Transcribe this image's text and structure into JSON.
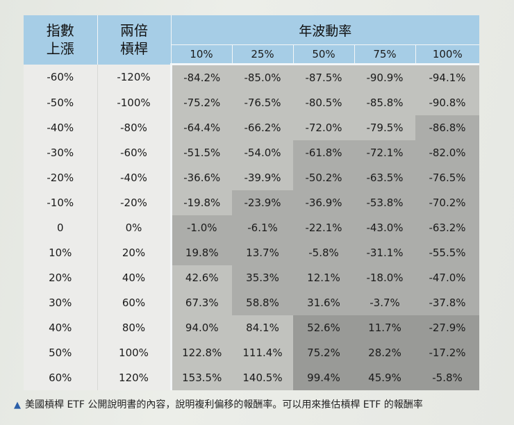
{
  "table": {
    "headers": {
      "index_change": [
        "指數",
        "上漲"
      ],
      "leverage": [
        "兩倍",
        "槓桿"
      ],
      "volatility_title": "年波動率",
      "volatilities": [
        "10%",
        "25%",
        "50%",
        "75%",
        "100%"
      ]
    },
    "rows": [
      {
        "index": "-60%",
        "leverage": "-120%",
        "values": [
          "-84.2%",
          "-85.0%",
          "-87.5%",
          "-90.9%",
          "-94.1%"
        ]
      },
      {
        "index": "-50%",
        "leverage": "-100%",
        "values": [
          "-75.2%",
          "-76.5%",
          "-80.5%",
          "-85.8%",
          "-90.8%"
        ]
      },
      {
        "index": "-40%",
        "leverage": "-80%",
        "values": [
          "-64.4%",
          "-66.2%",
          "-72.0%",
          "-79.5%",
          "-86.8%"
        ]
      },
      {
        "index": "-30%",
        "leverage": "-60%",
        "values": [
          "-51.5%",
          "-54.0%",
          "-61.8%",
          "-72.1%",
          "-82.0%"
        ]
      },
      {
        "index": "-20%",
        "leverage": "-40%",
        "values": [
          "-36.6%",
          "-39.9%",
          "-50.2%",
          "-63.5%",
          "-76.5%"
        ]
      },
      {
        "index": "-10%",
        "leverage": "-20%",
        "values": [
          "-19.8%",
          "-23.9%",
          "-36.9%",
          "-53.8%",
          "-70.2%"
        ]
      },
      {
        "index": "0",
        "leverage": "0%",
        "values": [
          "-1.0%",
          "-6.1%",
          "-22.1%",
          "-43.0%",
          "-63.2%"
        ]
      },
      {
        "index": "10%",
        "leverage": "20%",
        "values": [
          "19.8%",
          "13.7%",
          "-5.8%",
          "-31.1%",
          "-55.5%"
        ]
      },
      {
        "index": "20%",
        "leverage": "40%",
        "values": [
          "42.6%",
          "35.3%",
          "12.1%",
          "-18.0%",
          "-47.0%"
        ]
      },
      {
        "index": "30%",
        "leverage": "60%",
        "values": [
          "67.3%",
          "58.8%",
          "31.6%",
          "-3.7%",
          "-37.8%"
        ]
      },
      {
        "index": "40%",
        "leverage": "80%",
        "values": [
          "94.0%",
          "84.1%",
          "52.6%",
          "11.7%",
          "-27.9%"
        ]
      },
      {
        "index": "50%",
        "leverage": "100%",
        "values": [
          "122.8%",
          "111.4%",
          "75.2%",
          "28.2%",
          "-17.2%"
        ]
      },
      {
        "index": "60%",
        "leverage": "120%",
        "values": [
          "153.5%",
          "140.5%",
          "99.4%",
          "45.9%",
          "-5.8%"
        ]
      }
    ],
    "shading": [
      [
        "lt",
        "lt",
        "lt",
        "lt",
        "lt"
      ],
      [
        "lt",
        "lt",
        "lt",
        "lt",
        "lt"
      ],
      [
        "lt",
        "lt",
        "lt",
        "lt",
        "md"
      ],
      [
        "lt",
        "lt",
        "md",
        "md",
        "md"
      ],
      [
        "lt",
        "lt",
        "md",
        "md",
        "md"
      ],
      [
        "lt",
        "md",
        "md",
        "md",
        "md"
      ],
      [
        "md",
        "md",
        "md",
        "md",
        "md"
      ],
      [
        "md",
        "md",
        "md",
        "md",
        "md"
      ],
      [
        "lt",
        "md",
        "md",
        "md",
        "md"
      ],
      [
        "lt",
        "md",
        "md",
        "md",
        "md"
      ],
      [
        "lt",
        "lt",
        "dk",
        "dk",
        "dk"
      ],
      [
        "lt",
        "lt",
        "dk",
        "dk",
        "dk"
      ],
      [
        "lt",
        "lt",
        "dk",
        "dk",
        "dk"
      ]
    ]
  },
  "caption": "美國槓桿 ETF 公開說明書的內容，說明複利偏移的報酬率。可以用來推估槓桿 ETF 的報酬率"
}
